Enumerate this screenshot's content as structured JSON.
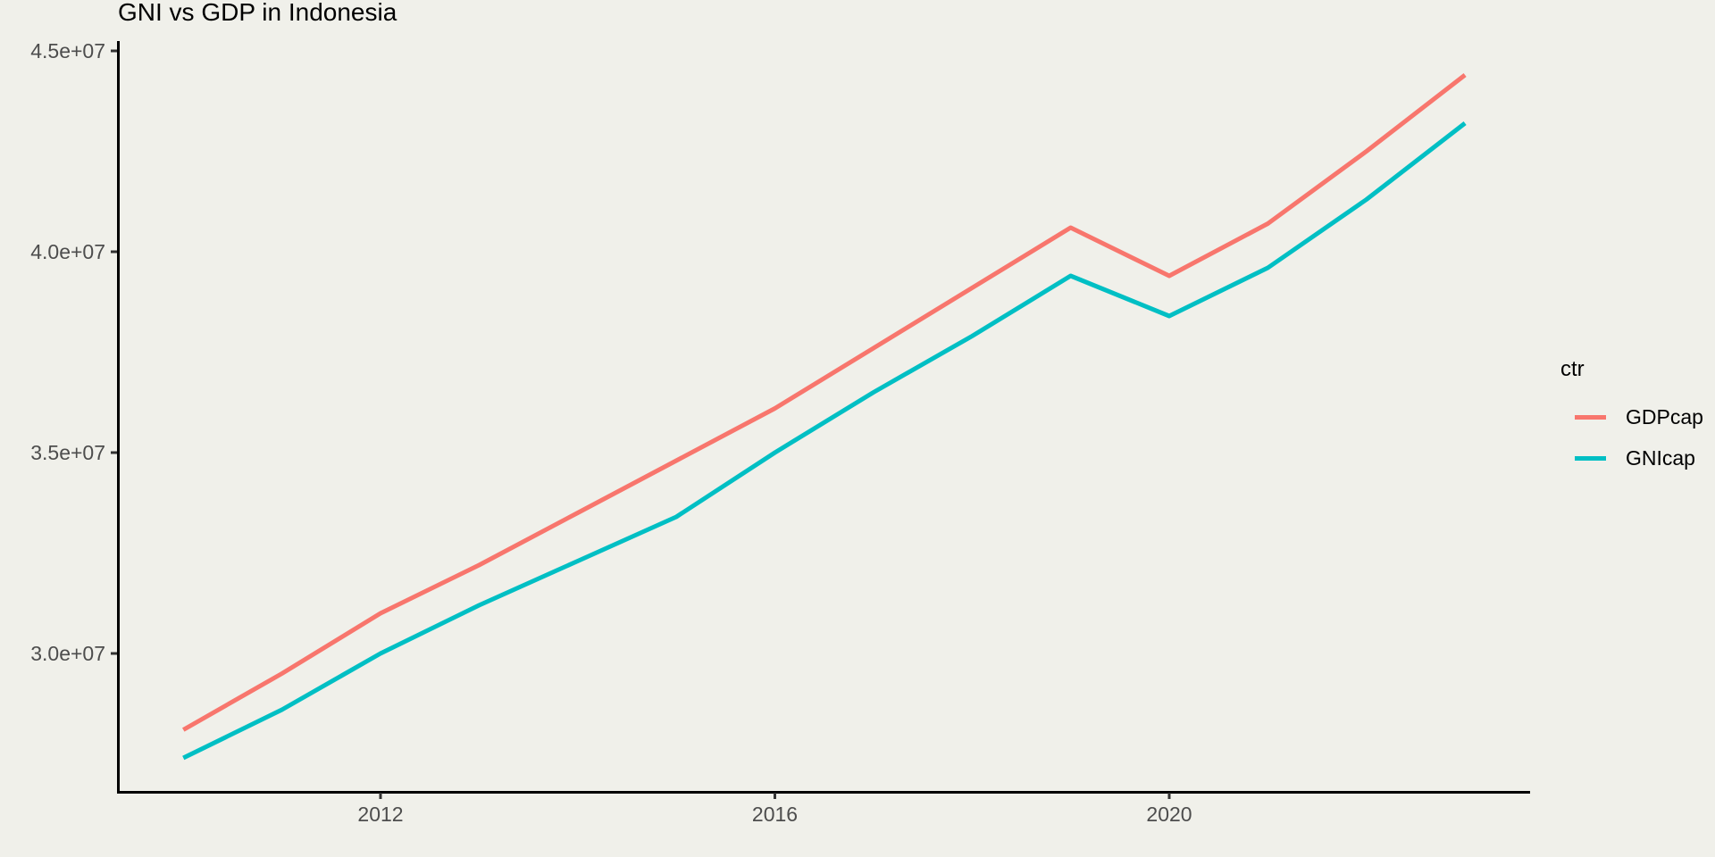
{
  "title": "GNI vs GDP in Indonesia",
  "colors": {
    "background": "#F0F0EA",
    "axis": "#000000",
    "tick_text": "#4D4D4D",
    "gdp_line": "#F8766D",
    "gni_line": "#00BFC4"
  },
  "legend": {
    "title": "ctr",
    "entries": [
      {
        "label": "GDPcap",
        "color": "#F8766D"
      },
      {
        "label": "GNIcap",
        "color": "#00BFC4"
      }
    ]
  },
  "chart_data": {
    "type": "line",
    "title": "GNI vs GDP in Indonesia",
    "xlabel": "",
    "ylabel": "",
    "legend_title": "ctr",
    "legend_position": "right",
    "grid": false,
    "xlim": [
      2009.35,
      2023.65
    ],
    "ylim": [
      26550000,
      45250000
    ],
    "x": [
      2010,
      2011,
      2012,
      2013,
      2014,
      2015,
      2016,
      2017,
      2018,
      2019,
      2020,
      2021,
      2022,
      2023
    ],
    "series": [
      {
        "name": "GDPcap",
        "color": "#F8766D",
        "values": [
          28100000,
          29500000,
          31000000,
          32200000,
          33500000,
          34800000,
          36100000,
          37600000,
          39100000,
          40600000,
          39400000,
          40700000,
          42500000,
          44400000
        ]
      },
      {
        "name": "GNIcap",
        "color": "#00BFC4",
        "values": [
          27400000,
          28600000,
          30000000,
          31200000,
          32300000,
          33400000,
          35000000,
          36500000,
          37900000,
          39400000,
          38400000,
          39600000,
          41300000,
          43200000
        ]
      }
    ],
    "x_ticks": [
      {
        "value": 2012,
        "label": "2012"
      },
      {
        "value": 2016,
        "label": "2016"
      },
      {
        "value": 2020,
        "label": "2020"
      }
    ],
    "y_ticks": [
      {
        "value": 30000000,
        "label": "3.0e+07"
      },
      {
        "value": 35000000,
        "label": "3.5e+07"
      },
      {
        "value": 40000000,
        "label": "4.0e+07"
      },
      {
        "value": 45000000,
        "label": "4.5e+07"
      }
    ]
  }
}
